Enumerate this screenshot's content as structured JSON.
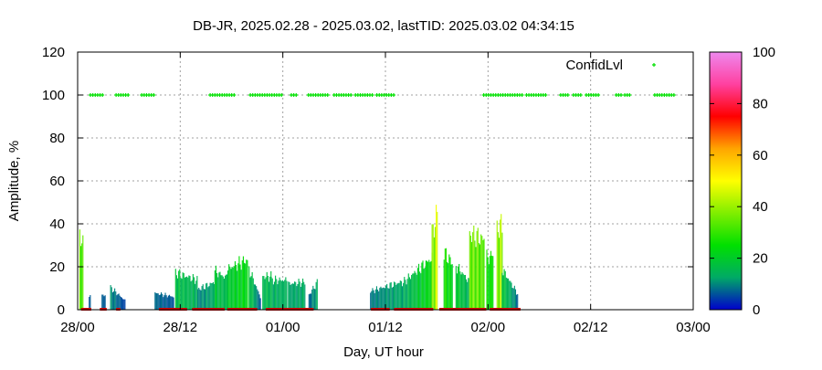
{
  "chart_data": {
    "type": "bar",
    "title": "DB-JR, 2025.02.28 - 2025.03.02, lastTID: 2025.03.02 04:34:15",
    "xlabel": "Day, UT hour",
    "ylabel": "Amplitude, %",
    "xlim": [
      0,
      72
    ],
    "ylim": [
      0,
      120
    ],
    "x_tick_values": [
      0,
      12,
      24,
      36,
      48,
      60,
      72
    ],
    "x_tick_labels": [
      "28/00",
      "28/12",
      "01/00",
      "01/12",
      "02/00",
      "02/12",
      "03/00"
    ],
    "y_tick_labels": [
      "0",
      "20",
      "40",
      "60",
      "80",
      "100",
      "120"
    ],
    "grid": true,
    "legend": {
      "position": "top-right",
      "label": "ConfidLvl"
    },
    "colorbar": {
      "min": 0,
      "max": 100,
      "tick_labels": [
        "0",
        "20",
        "40",
        "60",
        "80",
        "100"
      ],
      "stops": [
        "#0000cc",
        "#00aa66",
        "#00e000",
        "#80ee00",
        "#ffff00",
        "#ffa500",
        "#ff0000",
        "#ff40a0",
        "#ee88ee"
      ]
    },
    "confidence_color": "#00e000",
    "confidence_level": 100,
    "confidence_intervals": [
      [
        1.5,
        3.0
      ],
      [
        4.5,
        6.0
      ],
      [
        7.5,
        9.0
      ],
      [
        15.5,
        18.5
      ],
      [
        20.2,
        24.0
      ],
      [
        25.0,
        25.6
      ],
      [
        27.0,
        29.5
      ],
      [
        30.0,
        32.0
      ],
      [
        32.5,
        34.5
      ],
      [
        35.0,
        37.0
      ],
      [
        47.5,
        52.0
      ],
      [
        52.5,
        55.0
      ],
      [
        56.5,
        57.5
      ],
      [
        58.0,
        59.0
      ],
      [
        59.5,
        61.0
      ],
      [
        63.0,
        63.6
      ],
      [
        64.0,
        64.6
      ],
      [
        67.5,
        70.0
      ]
    ],
    "amplitude_segments": [
      {
        "x": [
          0.2,
          0.6
        ],
        "y": [
          42,
          34
        ]
      },
      {
        "x": [
          1.3,
          1.5
        ],
        "y": [
          8,
          8
        ]
      },
      {
        "x": [
          2.8,
          3.2
        ],
        "y": [
          8,
          8
        ]
      },
      {
        "x": [
          3.8,
          5.5
        ],
        "y": [
          12,
          5
        ]
      },
      {
        "x": [
          9.0,
          11.2
        ],
        "y": [
          9,
          7
        ]
      },
      {
        "x": [
          11.4,
          14.0
        ],
        "y": [
          20,
          16
        ]
      },
      {
        "x": [
          14.0,
          16.0
        ],
        "y": [
          11,
          15
        ]
      },
      {
        "x": [
          16.0,
          17.4
        ],
        "y": [
          21,
          17
        ]
      },
      {
        "x": [
          17.4,
          19.8
        ],
        "y": [
          22,
          27
        ]
      },
      {
        "x": [
          20.0,
          21.4
        ],
        "y": [
          22,
          6
        ]
      },
      {
        "x": [
          21.6,
          22.6
        ],
        "y": [
          18,
          18
        ]
      },
      {
        "x": [
          22.6,
          24.5
        ],
        "y": [
          16,
          16
        ]
      },
      {
        "x": [
          24.6,
          26.6
        ],
        "y": [
          14,
          15
        ]
      },
      {
        "x": [
          27.0,
          28.0
        ],
        "y": [
          8,
          15
        ]
      },
      {
        "x": [
          34.2,
          37.8
        ],
        "y": [
          10,
          15
        ]
      },
      {
        "x": [
          37.8,
          41.4
        ],
        "y": [
          14,
          28
        ]
      },
      {
        "x": [
          41.4,
          42.0
        ],
        "y": [
          42,
          51
        ]
      },
      {
        "x": [
          42.8,
          43.8
        ],
        "y": [
          31,
          25
        ]
      },
      {
        "x": [
          44.2,
          45.8
        ],
        "y": [
          24,
          15
        ]
      },
      {
        "x": [
          45.8,
          47.5
        ],
        "y": [
          41,
          38
        ]
      },
      {
        "x": [
          47.8,
          48.6
        ],
        "y": [
          28,
          30
        ]
      },
      {
        "x": [
          49.0,
          49.6
        ],
        "y": [
          44,
          46
        ]
      },
      {
        "x": [
          49.6,
          51.5
        ],
        "y": [
          22,
          8
        ]
      }
    ],
    "low_markers": [
      [
        0.4,
        1.6
      ],
      [
        2.6,
        3.4
      ],
      [
        4.5,
        5.0
      ],
      [
        9.5,
        12.8
      ],
      [
        13.4,
        17.2
      ],
      [
        17.5,
        21.0
      ],
      [
        22.0,
        27.6
      ],
      [
        34.3,
        36.5
      ],
      [
        37.0,
        41.6
      ],
      [
        42.3,
        47.8
      ],
      [
        48.2,
        51.8
      ]
    ]
  }
}
